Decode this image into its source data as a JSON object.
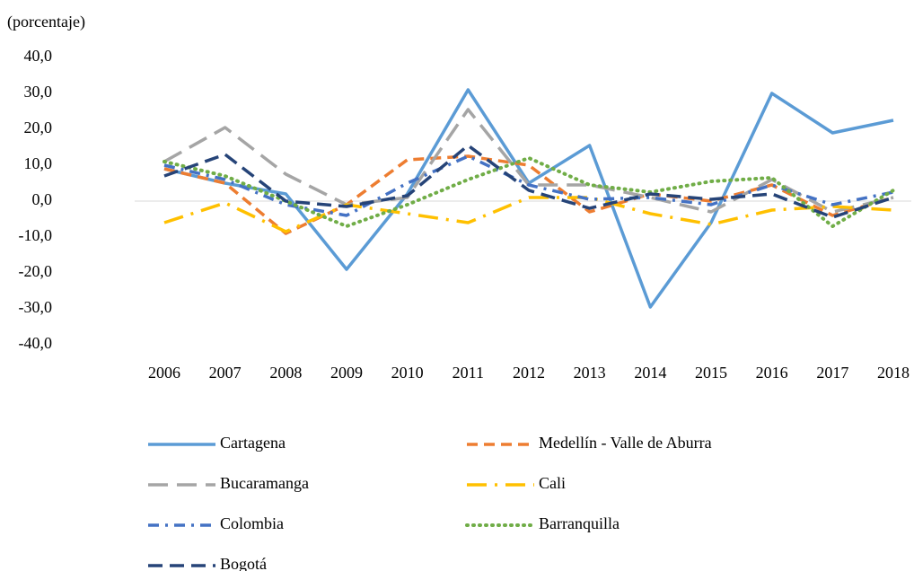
{
  "chart_data": {
    "type": "line",
    "ylabel": "(porcentaje)",
    "categories": [
      "2006",
      "2007",
      "2008",
      "2009",
      "2010",
      "2011",
      "2012",
      "2013",
      "2014",
      "2015",
      "2016",
      "2017",
      "2018"
    ],
    "ylim": [
      -40,
      40
    ],
    "yticks": [
      {
        "value": -40,
        "label": "-40,0"
      },
      {
        "value": -30,
        "label": "-30,0"
      },
      {
        "value": -20,
        "label": "-20,0"
      },
      {
        "value": -10,
        "label": "-10,0"
      },
      {
        "value": 0,
        "label": "0,0"
      },
      {
        "value": 10,
        "label": "10,0"
      },
      {
        "value": 20,
        "label": "20,0"
      },
      {
        "value": 30,
        "label": "30,0"
      },
      {
        "value": 40,
        "label": "40,0"
      }
    ],
    "grid": false,
    "series": [
      {
        "name": "Cartagena",
        "color": "#5b9bd5",
        "values": [
          9,
          5,
          2,
          -19,
          2,
          31,
          5,
          15.5,
          -29.5,
          -6,
          30,
          19,
          22.5
        ]
      },
      {
        "name": "Medellín - Valle de Aburra",
        "color": "#ed7d31",
        "values": [
          9,
          5,
          -9,
          -1,
          11.5,
          12.5,
          10,
          -3,
          2,
          0,
          4.5,
          -4,
          1
        ]
      },
      {
        "name": "Bucaramanga",
        "color": "#a5a5a5",
        "values": [
          11,
          20.5,
          7.5,
          -1,
          1,
          25.5,
          4.5,
          4.5,
          1,
          -3,
          6,
          -3,
          1
        ]
      },
      {
        "name": "Cali",
        "color": "#ffc000",
        "values": [
          -6,
          -0.5,
          -8.5,
          -1,
          -3.5,
          -6,
          1,
          1,
          -3.5,
          -6.5,
          -2.5,
          -1.5,
          -2.5
        ]
      },
      {
        "name": "Colombia",
        "color": "#4472c4",
        "values": [
          10,
          6,
          -1,
          -4,
          5,
          12.5,
          4.5,
          0.5,
          1,
          -1,
          4.5,
          -1,
          2.5
        ]
      },
      {
        "name": "Barranquilla",
        "color": "#70ad47",
        "values": [
          11,
          7,
          0,
          -7,
          -1,
          6,
          12,
          4.5,
          2.5,
          5.5,
          6.5,
          -7,
          3
        ]
      },
      {
        "name": "Bogotá",
        "color": "#264478",
        "values": [
          7,
          13,
          0,
          -1.5,
          1.5,
          15.5,
          3,
          -2,
          2,
          0.5,
          2,
          -4.5,
          1
        ]
      }
    ]
  }
}
